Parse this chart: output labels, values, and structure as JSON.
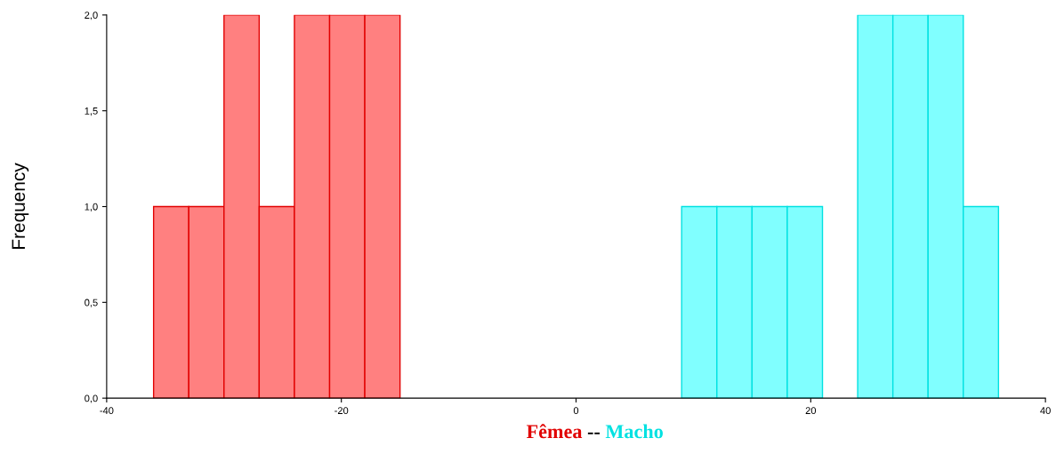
{
  "chart_data": {
    "type": "histogram",
    "xlabel": "Fêmea -- Macho",
    "ylabel": "Frequency",
    "bins": [
      -36,
      -33,
      -30,
      -27,
      -24,
      -21,
      -18,
      -15,
      -12,
      -9,
      -6,
      -3,
      0,
      3,
      6,
      9,
      12,
      15,
      18,
      21,
      24,
      27,
      30,
      33,
      36
    ],
    "values": [
      1,
      1,
      2,
      1,
      2,
      2,
      2,
      0,
      0,
      0,
      0,
      0,
      0,
      0,
      0,
      1,
      1,
      1,
      1,
      0,
      2,
      2,
      2,
      1
    ],
    "colors": [
      "#ff8080",
      "#ff8080",
      "#ff8080",
      "#ff8080",
      "#ff8080",
      "#ff8080",
      "#ff8080",
      "#ff8080",
      "#ff8080",
      "#ff8080",
      "#ff8080",
      "#ff8080",
      "#80ffff",
      "#80ffff",
      "#80ffff",
      "#80ffff",
      "#80ffff",
      "#80ffff",
      "#80ffff",
      "#80ffff",
      "#80ffff",
      "#80ffff",
      "#80ffff",
      "#80ffff"
    ],
    "xlim": [
      -40,
      40
    ],
    "xticks": [
      -40,
      -20,
      0,
      20,
      40
    ],
    "ylim": [
      0,
      2
    ],
    "yticks": [
      {
        "value": 0,
        "label": "0,0"
      },
      {
        "value": 0.5,
        "label": "0,5"
      },
      {
        "value": 1,
        "label": "1,0"
      },
      {
        "value": 1.5,
        "label": "1,5"
      },
      {
        "value": 2,
        "label": "2,0"
      }
    ],
    "grid": false
  }
}
